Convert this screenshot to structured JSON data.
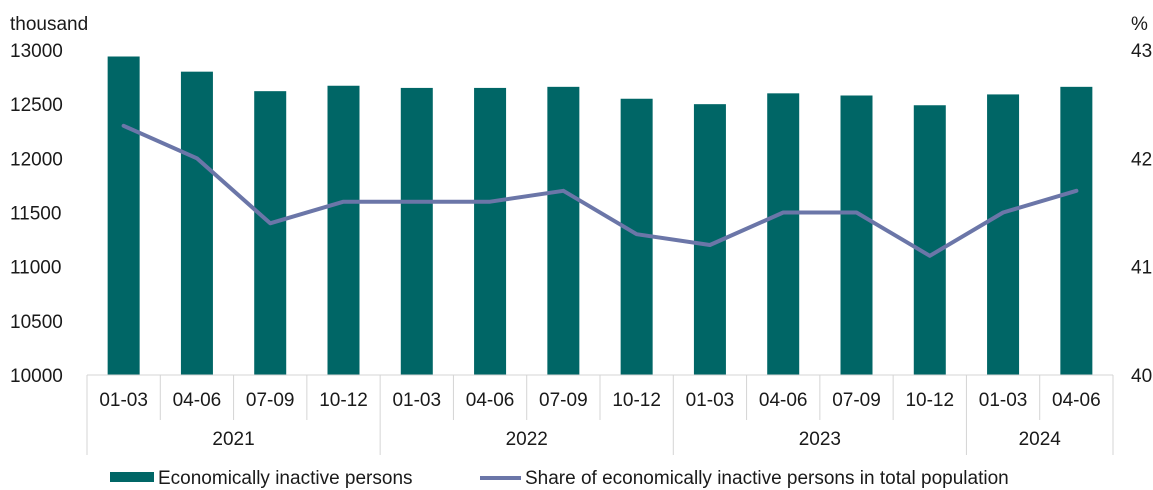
{
  "chart_data": {
    "type": "bar+line",
    "left_unit": "thousand",
    "right_unit": "%",
    "categories": [
      "01-03",
      "04-06",
      "07-09",
      "10-12",
      "01-03",
      "04-06",
      "07-09",
      "10-12",
      "01-03",
      "04-06",
      "07-09",
      "10-12",
      "01-03",
      "04-06"
    ],
    "years": [
      {
        "label": "2021",
        "span": 4
      },
      {
        "label": "2022",
        "span": 4
      },
      {
        "label": "2023",
        "span": 4
      },
      {
        "label": "2024",
        "span": 2
      }
    ],
    "y_left": {
      "min": 10000,
      "max": 13000,
      "ticks": [
        "10000",
        "10500",
        "11000",
        "11500",
        "12000",
        "12500",
        "13000"
      ]
    },
    "y_right": {
      "min": 40,
      "max": 43,
      "ticks": [
        "40",
        "41",
        "42",
        "43"
      ]
    },
    "series": [
      {
        "name": "Economically inactive persons",
        "type": "bar",
        "axis": "left",
        "color": "#006666",
        "values": [
          12940,
          12800,
          12620,
          12670,
          12650,
          12650,
          12660,
          12550,
          12500,
          12600,
          12580,
          12490,
          12590,
          12660
        ]
      },
      {
        "name": "Share of economically inactive persons in total population",
        "type": "line",
        "axis": "right",
        "color": "#6b76a8",
        "values": [
          42.3,
          42.0,
          41.4,
          41.6,
          41.6,
          41.6,
          41.7,
          41.3,
          41.2,
          41.5,
          41.5,
          41.1,
          41.5,
          41.7
        ]
      }
    ],
    "grid": false,
    "legend_position": "bottom"
  }
}
